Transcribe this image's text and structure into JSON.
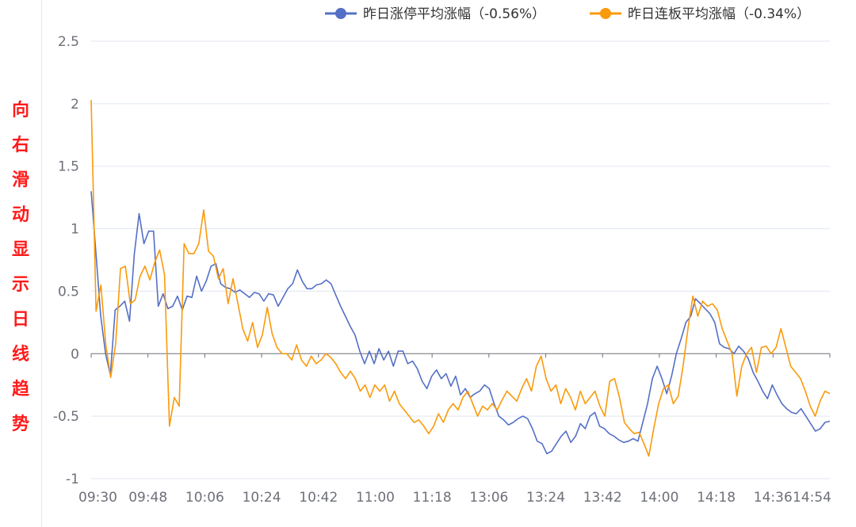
{
  "side_label": {
    "chars": [
      "向",
      "右",
      "滑",
      "动",
      "显",
      "示",
      "日",
      "线",
      "趋",
      "势"
    ],
    "color": "#ff1a1a"
  },
  "chart_data": {
    "type": "line",
    "title": "",
    "xlabel": "",
    "ylabel": "",
    "x_tick_labels": [
      "09:30",
      "09:48",
      "10:06",
      "10:24",
      "10:42",
      "11:00",
      "11:18",
      "13:06",
      "13:24",
      "13:42",
      "14:00",
      "14:18",
      "14:36",
      "14:54"
    ],
    "y_tick_labels": [
      "2.5",
      "2",
      "1.5",
      "1",
      "0.5",
      "0",
      "-0.5",
      "-1"
    ],
    "ylim": [
      -1,
      2.5
    ],
    "grid": true,
    "legend_position": "top-right",
    "series": [
      {
        "name": "昨日涨停平均涨幅（-0.56%）",
        "color": "#5470c6",
        "values": [
          1.3,
          0.8,
          0.3,
          0.0,
          -0.17,
          0.35,
          0.38,
          0.42,
          0.26,
          0.8,
          1.12,
          0.88,
          0.98,
          0.98,
          0.38,
          0.48,
          0.36,
          0.38,
          0.46,
          0.35,
          0.46,
          0.45,
          0.62,
          0.5,
          0.58,
          0.7,
          0.72,
          0.56,
          0.53,
          0.52,
          0.49,
          0.51,
          0.48,
          0.45,
          0.49,
          0.48,
          0.42,
          0.48,
          0.47,
          0.38,
          0.45,
          0.52,
          0.56,
          0.67,
          0.58,
          0.52,
          0.52,
          0.55,
          0.56,
          0.59,
          0.56,
          0.47,
          0.38,
          0.3,
          0.22,
          0.15,
          0.02,
          -0.08,
          0.02,
          -0.08,
          0.04,
          -0.05,
          0.02,
          -0.1,
          0.02,
          0.02,
          -0.08,
          -0.06,
          -0.12,
          -0.22,
          -0.28,
          -0.18,
          -0.13,
          -0.2,
          -0.16,
          -0.26,
          -0.18,
          -0.33,
          -0.28,
          -0.35,
          -0.32,
          -0.3,
          -0.25,
          -0.28,
          -0.4,
          -0.5,
          -0.53,
          -0.57,
          -0.55,
          -0.52,
          -0.5,
          -0.52,
          -0.6,
          -0.7,
          -0.72,
          -0.8,
          -0.78,
          -0.72,
          -0.66,
          -0.62,
          -0.71,
          -0.66,
          -0.56,
          -0.6,
          -0.5,
          -0.47,
          -0.58,
          -0.6,
          -0.64,
          -0.66,
          -0.69,
          -0.71,
          -0.7,
          -0.68,
          -0.7,
          -0.55,
          -0.4,
          -0.2,
          -0.1,
          -0.2,
          -0.32,
          -0.18,
          0.0,
          0.12,
          0.25,
          0.3,
          0.44,
          0.4,
          0.36,
          0.32,
          0.25,
          0.08,
          0.05,
          0.04,
          0.0,
          0.06,
          0.02,
          -0.04,
          -0.15,
          -0.22,
          -0.3,
          -0.36,
          -0.25,
          -0.33,
          -0.4,
          -0.44,
          -0.47,
          -0.48,
          -0.44,
          -0.5,
          -0.56,
          -0.62,
          -0.6,
          -0.55,
          -0.54
        ]
      },
      {
        "name": "昨日连板平均涨幅（-0.34%）",
        "color": "#fa9a0a",
        "values": [
          2.03,
          0.34,
          0.55,
          0.07,
          -0.19,
          0.08,
          0.68,
          0.7,
          0.4,
          0.43,
          0.62,
          0.7,
          0.59,
          0.73,
          0.83,
          0.63,
          -0.58,
          -0.35,
          -0.42,
          0.88,
          0.8,
          0.8,
          0.88,
          1.15,
          0.82,
          0.78,
          0.6,
          0.68,
          0.4,
          0.6,
          0.4,
          0.2,
          0.1,
          0.25,
          0.05,
          0.15,
          0.37,
          0.16,
          0.05,
          0.0,
          0.0,
          -0.05,
          0.07,
          -0.05,
          -0.1,
          -0.02,
          -0.08,
          -0.05,
          0.0,
          -0.03,
          -0.08,
          -0.15,
          -0.2,
          -0.14,
          -0.2,
          -0.3,
          -0.25,
          -0.35,
          -0.25,
          -0.3,
          -0.25,
          -0.38,
          -0.3,
          -0.4,
          -0.45,
          -0.5,
          -0.55,
          -0.53,
          -0.58,
          -0.64,
          -0.58,
          -0.48,
          -0.55,
          -0.45,
          -0.4,
          -0.45,
          -0.35,
          -0.3,
          -0.4,
          -0.5,
          -0.42,
          -0.45,
          -0.4,
          -0.45,
          -0.37,
          -0.3,
          -0.34,
          -0.38,
          -0.28,
          -0.2,
          -0.3,
          -0.1,
          -0.02,
          -0.2,
          -0.3,
          -0.25,
          -0.4,
          -0.28,
          -0.35,
          -0.45,
          -0.3,
          -0.4,
          -0.35,
          -0.3,
          -0.42,
          -0.5,
          -0.22,
          -0.2,
          -0.35,
          -0.55,
          -0.6,
          -0.64,
          -0.63,
          -0.72,
          -0.82,
          -0.6,
          -0.4,
          -0.28,
          -0.25,
          -0.4,
          -0.34,
          -0.1,
          0.2,
          0.46,
          0.3,
          0.42,
          0.38,
          0.4,
          0.35,
          0.2,
          0.1,
          0.0,
          -0.34,
          -0.1,
          0.0,
          0.05,
          -0.15,
          0.05,
          0.06,
          0.0,
          0.05,
          0.2,
          0.05,
          -0.1,
          -0.15,
          -0.2,
          -0.3,
          -0.42,
          -0.5,
          -0.38,
          -0.3,
          -0.32
        ]
      }
    ]
  }
}
